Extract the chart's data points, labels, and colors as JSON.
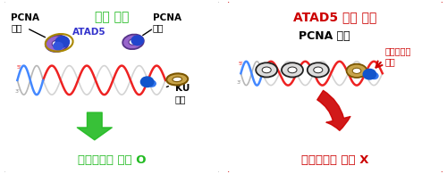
{
  "left_title": "정상 세포",
  "right_title": "ATAD5 결핍 세포",
  "left_bottom": "상동재조합 복구 O",
  "right_bottom": "상동재조합 복구 X",
  "right_label_top": "PCNA 축적",
  "right_label_side": "단거리절제\n방해",
  "left_title_color": "#22bb22",
  "right_title_color": "#cc0000",
  "left_bottom_color": "#22bb22",
  "right_bottom_color": "#cc0000",
  "dna_red": "#ee2222",
  "dna_blue": "#4488ff",
  "dna_gray": "#bbbbbb",
  "atad5_color": "#3333cc",
  "pcna_fill": "#cccccc",
  "pcna_edge": "#444444",
  "ku_fill": "#c8a44a",
  "ku_edge": "#7a5500",
  "blue_dot": "#1155cc"
}
